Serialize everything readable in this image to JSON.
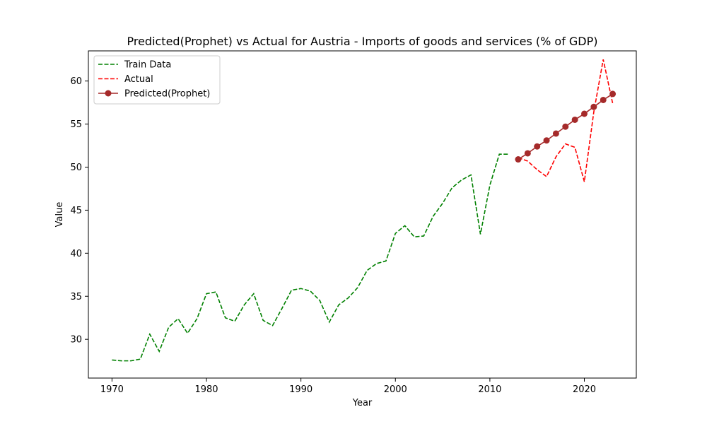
{
  "chart_data": {
    "type": "line",
    "title": "Predicted(Prophet) vs Actual for Austria - Imports of goods and services (% of GDP)",
    "xlabel": "Year",
    "ylabel": "Value",
    "xlim": [
      1967.5,
      2025.5
    ],
    "ylim": [
      25.5,
      63.5
    ],
    "xticks": [
      1970,
      1980,
      1990,
      2000,
      2010,
      2020
    ],
    "yticks": [
      30,
      35,
      40,
      45,
      50,
      55,
      60
    ],
    "grid": false,
    "legend_position": "upper-left",
    "series": [
      {
        "name": "Train Data",
        "style": "dashed",
        "color": "#008000",
        "x": [
          1970,
          1971,
          1972,
          1973,
          1974,
          1975,
          1976,
          1977,
          1978,
          1979,
          1980,
          1981,
          1982,
          1983,
          1984,
          1985,
          1986,
          1987,
          1988,
          1989,
          1990,
          1991,
          1992,
          1993,
          1994,
          1995,
          1996,
          1997,
          1998,
          1999,
          2000,
          2001,
          2002,
          2003,
          2004,
          2005,
          2006,
          2007,
          2008,
          2009,
          2010,
          2011,
          2012
        ],
        "y": [
          27.6,
          27.5,
          27.5,
          27.7,
          30.6,
          28.6,
          31.4,
          32.4,
          30.7,
          32.4,
          35.3,
          35.5,
          32.5,
          32.1,
          34.0,
          35.3,
          32.2,
          31.6,
          33.6,
          35.7,
          35.9,
          35.6,
          34.5,
          32.0,
          34.0,
          34.8,
          36.0,
          38.0,
          38.8,
          39.1,
          42.3,
          43.2,
          41.9,
          42.0,
          44.3,
          45.8,
          47.6,
          48.5,
          49.1,
          42.2,
          47.9,
          51.5,
          51.5
        ]
      },
      {
        "name": "Actual",
        "style": "dashed",
        "color": "#ff0000",
        "x": [
          2013,
          2014,
          2015,
          2016,
          2017,
          2018,
          2019,
          2020,
          2021,
          2022,
          2023
        ],
        "y": [
          51.1,
          50.7,
          49.7,
          48.9,
          51.2,
          52.7,
          52.3,
          48.3,
          56.4,
          62.5,
          57.4
        ]
      },
      {
        "name": "Predicted(Prophet)",
        "style": "solid-markers",
        "color": "#a52a2a",
        "x": [
          2013,
          2014,
          2015,
          2016,
          2017,
          2018,
          2019,
          2020,
          2021,
          2022,
          2023
        ],
        "y": [
          50.9,
          51.6,
          52.4,
          53.1,
          53.9,
          54.7,
          55.5,
          56.2,
          57.0,
          57.8,
          58.5
        ]
      }
    ]
  }
}
